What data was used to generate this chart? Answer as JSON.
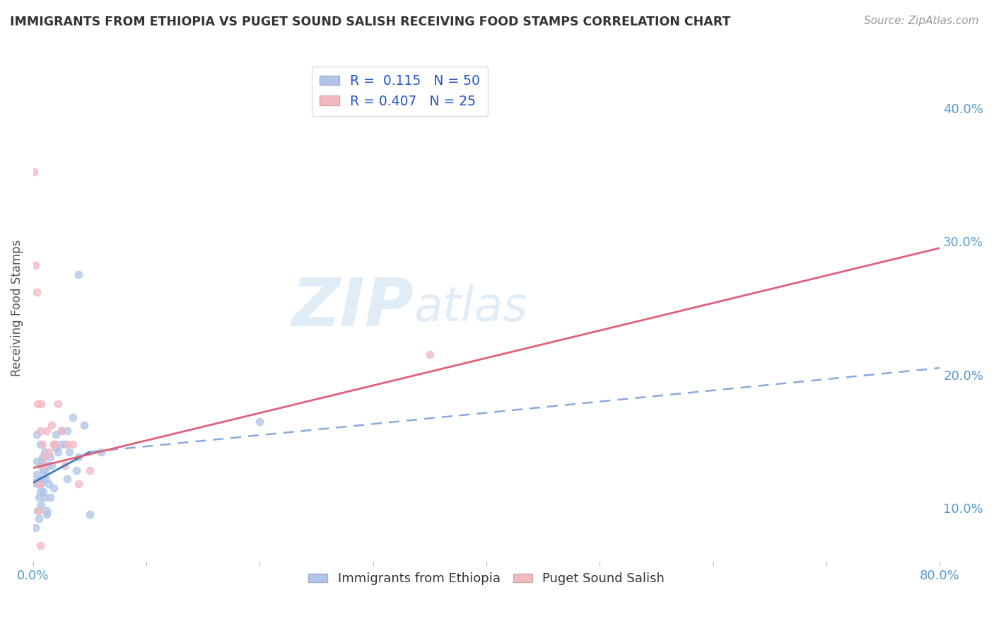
{
  "title": "IMMIGRANTS FROM ETHIOPIA VS PUGET SOUND SALISH RECEIVING FOOD STAMPS CORRELATION CHART",
  "source": "Source: ZipAtlas.com",
  "ylabel": "Receiving Food Stamps",
  "xlim": [
    0.0,
    0.8
  ],
  "ylim": [
    0.06,
    0.44
  ],
  "xticks": [
    0.0,
    0.1,
    0.2,
    0.3,
    0.4,
    0.5,
    0.6,
    0.7,
    0.8
  ],
  "yticks": [
    0.1,
    0.2,
    0.3,
    0.4
  ],
  "watermark_zip": "ZIP",
  "watermark_atlas": "atlas",
  "background_color": "#ffffff",
  "grid_color": "#cccccc",
  "title_color": "#333333",
  "tick_color": "#5599cc",
  "blue_scatter_color": "#aec6e8",
  "pink_scatter_color": "#f4b8c1",
  "blue_line_solid_color": "#4477bb",
  "blue_line_dash_color": "#88aadd",
  "pink_line_color": "#e0607a",
  "legend_box_blue": "#aec6e8",
  "legend_box_pink": "#f4b8c1",
  "legend_text_color": "#2255cc",
  "blue_R": "0.115",
  "blue_N": "50",
  "pink_R": "0.407",
  "pink_N": "25",
  "series_name_blue": "Immigrants from Ethiopia",
  "series_name_pink": "Puget Sound Salish",
  "blue_line_solid": {
    "x0": 0.0,
    "y0": 0.119,
    "x1": 0.05,
    "y1": 0.142
  },
  "blue_line_dash": {
    "x0": 0.05,
    "y0": 0.142,
    "x1": 0.8,
    "y1": 0.205
  },
  "pink_line": {
    "x0": 0.0,
    "y0": 0.13,
    "x1": 0.8,
    "y1": 0.295
  },
  "blue_scatter_x": [
    0.001,
    0.002,
    0.003,
    0.003,
    0.004,
    0.004,
    0.005,
    0.005,
    0.006,
    0.006,
    0.007,
    0.007,
    0.008,
    0.008,
    0.009,
    0.009,
    0.01,
    0.01,
    0.011,
    0.012,
    0.013,
    0.014,
    0.015,
    0.016,
    0.018,
    0.02,
    0.022,
    0.025,
    0.028,
    0.03,
    0.032,
    0.035,
    0.038,
    0.04,
    0.045,
    0.05,
    0.003,
    0.005,
    0.006,
    0.008,
    0.01,
    0.012,
    0.015,
    0.018,
    0.02,
    0.025,
    0.03,
    0.04,
    0.06,
    0.2
  ],
  "blue_scatter_y": [
    0.119,
    0.085,
    0.125,
    0.135,
    0.098,
    0.118,
    0.092,
    0.108,
    0.112,
    0.132,
    0.102,
    0.118,
    0.138,
    0.122,
    0.128,
    0.112,
    0.108,
    0.142,
    0.122,
    0.095,
    0.132,
    0.118,
    0.138,
    0.132,
    0.148,
    0.155,
    0.142,
    0.158,
    0.148,
    0.122,
    0.142,
    0.168,
    0.128,
    0.138,
    0.162,
    0.095,
    0.155,
    0.122,
    0.148,
    0.135,
    0.128,
    0.098,
    0.108,
    0.115,
    0.145,
    0.148,
    0.158,
    0.275,
    0.142,
    0.165
  ],
  "pink_scatter_x": [
    0.001,
    0.002,
    0.003,
    0.004,
    0.005,
    0.005,
    0.006,
    0.007,
    0.008,
    0.009,
    0.01,
    0.012,
    0.014,
    0.016,
    0.018,
    0.02,
    0.022,
    0.025,
    0.028,
    0.03,
    0.035,
    0.04,
    0.05,
    0.35,
    0.006
  ],
  "pink_scatter_y": [
    0.352,
    0.282,
    0.262,
    0.178,
    0.118,
    0.098,
    0.158,
    0.178,
    0.148,
    0.132,
    0.138,
    0.158,
    0.142,
    0.162,
    0.148,
    0.148,
    0.178,
    0.158,
    0.132,
    0.148,
    0.148,
    0.118,
    0.128,
    0.215,
    0.072
  ]
}
